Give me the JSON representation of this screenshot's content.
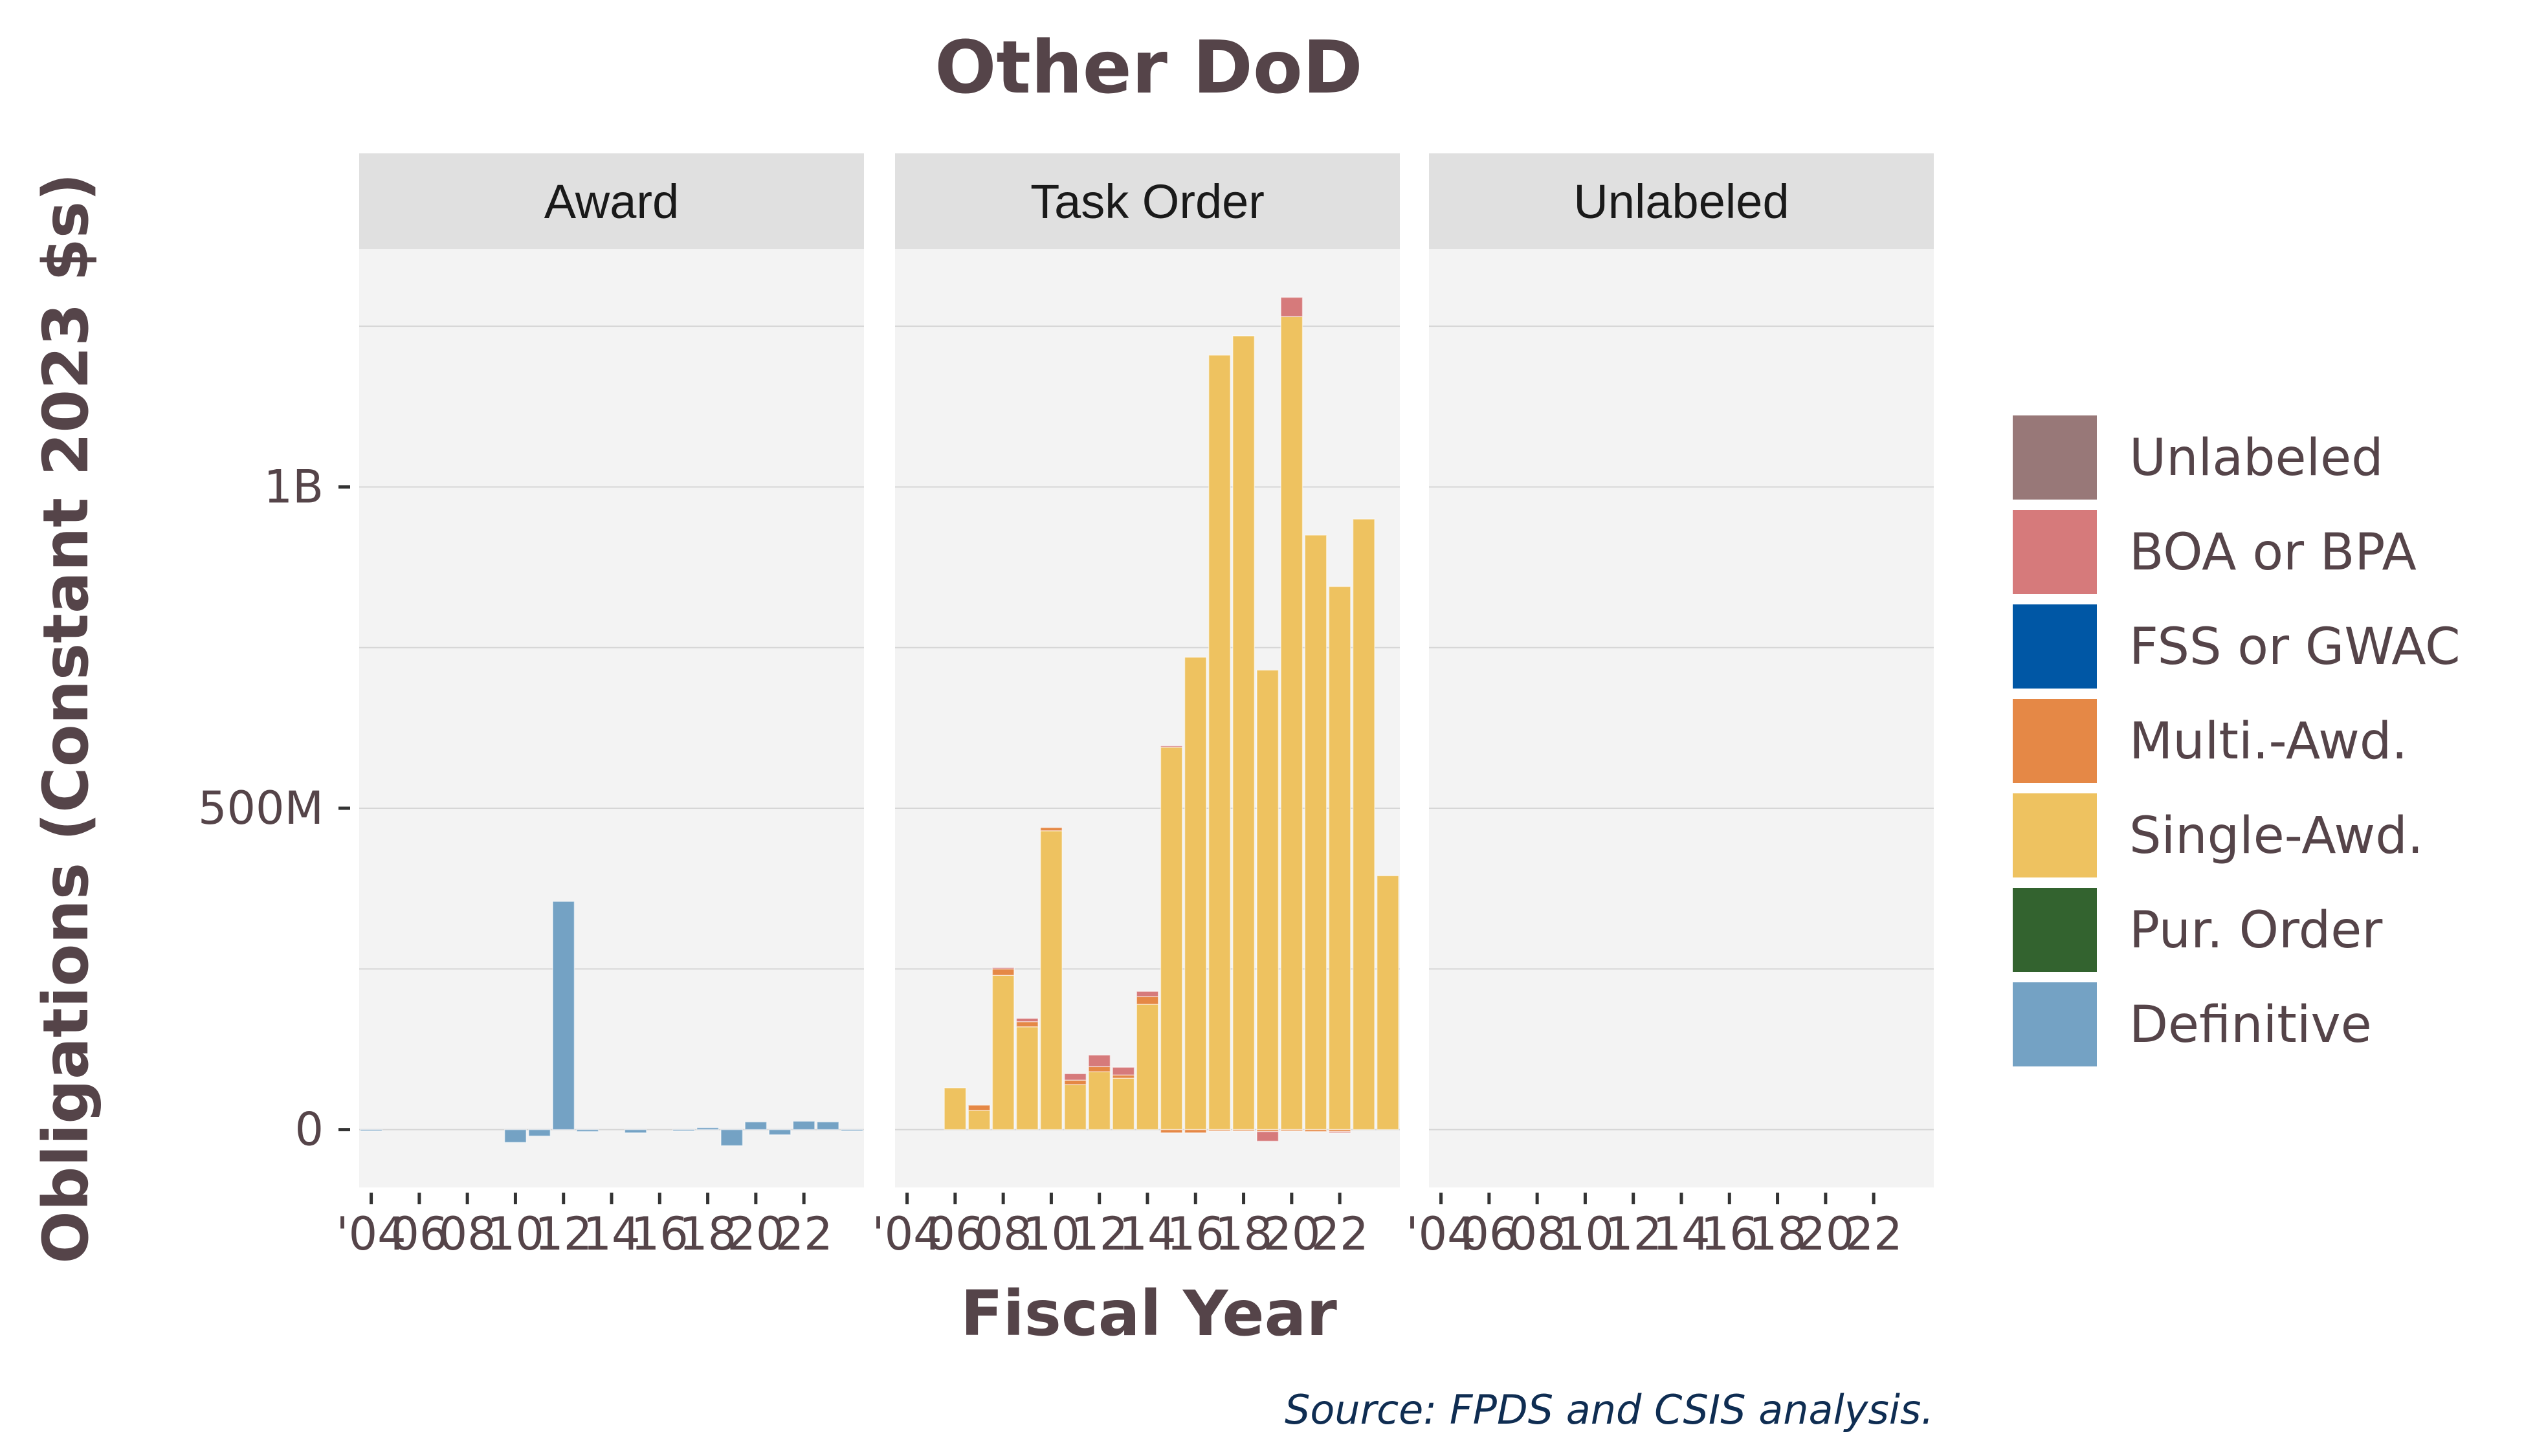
{
  "chart_data": {
    "type": "bar",
    "stacked": true,
    "title": "Other DoD",
    "xlabel": "Fiscal Year",
    "ylabel": "Obligations (Constant 2023 $s)",
    "source": "Source: FPDS and CSIS analysis.",
    "ylim": [
      -90000000,
      1370000000
    ],
    "xlim": [
      2003.5,
      2024.5
    ],
    "y_ticks": [
      {
        "value": 0,
        "label": "0"
      },
      {
        "value": 500000000,
        "label": "500M"
      },
      {
        "value": 1000000000,
        "label": "1B"
      }
    ],
    "x_ticks": [
      {
        "value": 2004,
        "label": "'04"
      },
      {
        "value": 2006,
        "label": "06"
      },
      {
        "value": 2008,
        "label": "08"
      },
      {
        "value": 2010,
        "label": "10"
      },
      {
        "value": 2012,
        "label": "12"
      },
      {
        "value": 2014,
        "label": "14"
      },
      {
        "value": 2016,
        "label": "16"
      },
      {
        "value": 2018,
        "label": "18"
      },
      {
        "value": 2020,
        "label": "20"
      },
      {
        "value": 2022,
        "label": "22"
      }
    ],
    "grid": true,
    "legend_position": "right",
    "legend": [
      {
        "name": "Unlabeled",
        "color": "#987878"
      },
      {
        "name": "BOA or BPA",
        "color": "#d67a7b"
      },
      {
        "name": "FSS or GWAC",
        "color": "#0057a5"
      },
      {
        "name": "Multi.-Awd.",
        "color": "#e58846"
      },
      {
        "name": "Single-Awd.",
        "color": "#eec260"
      },
      {
        "name": "Pur. Order",
        "color": "#33632f"
      },
      {
        "name": "Definitive",
        "color": "#74a2c4"
      }
    ],
    "panels": [
      {
        "label": "Award",
        "series": [
          {
            "name": "Definitive",
            "color": "#74a2c4",
            "x": [
              2004,
              2010,
              2011,
              2012,
              2013,
              2015,
              2017,
              2018,
              2019,
              2020,
              2021,
              2022,
              2023,
              2024
            ],
            "values": [
              -2000000,
              -20000000,
              -10000000,
              355000000,
              -3000000,
              -5000000,
              -2000000,
              3000000,
              -25000000,
              12000000,
              -8000000,
              13000000,
              12000000,
              -2000000
            ]
          }
        ]
      },
      {
        "label": "Task Order",
        "series": [
          {
            "name": "Single-Awd.",
            "color": "#eec260",
            "x": [
              2006,
              2007,
              2008,
              2009,
              2010,
              2011,
              2012,
              2013,
              2014,
              2015,
              2016,
              2017,
              2018,
              2019,
              2020,
              2021,
              2022,
              2023,
              2024
            ],
            "values": [
              65000000,
              30000000,
              240000000,
              160000000,
              465000000,
              70000000,
              90000000,
              80000000,
              195000000,
              595000000,
              735000000,
              1205000000,
              1235000000,
              715000000,
              1265000000,
              925000000,
              845000000,
              950000000,
              395000000
            ]
          },
          {
            "name": "Multi.-Awd.",
            "color": "#e58846",
            "x": [
              2007,
              2008,
              2009,
              2010,
              2011,
              2012,
              2013,
              2014,
              2015,
              2016,
              2017,
              2018,
              2019,
              2020,
              2021,
              2022
            ],
            "values": [
              8000000,
              10000000,
              8000000,
              5000000,
              7000000,
              8000000,
              5000000,
              12000000,
              -5000000,
              -5000000,
              -2000000,
              -2000000,
              -3000000,
              -2000000,
              -3000000,
              -3000000
            ]
          },
          {
            "name": "BOA or BPA",
            "color": "#d67a7b",
            "x": [
              2008,
              2009,
              2011,
              2012,
              2013,
              2014,
              2015,
              2019,
              2020,
              2022
            ],
            "values": [
              2000000,
              5000000,
              10000000,
              18000000,
              12000000,
              8000000,
              2000000,
              -15000000,
              30000000,
              -2000000
            ]
          }
        ]
      },
      {
        "label": "Unlabeled",
        "series": []
      }
    ]
  }
}
